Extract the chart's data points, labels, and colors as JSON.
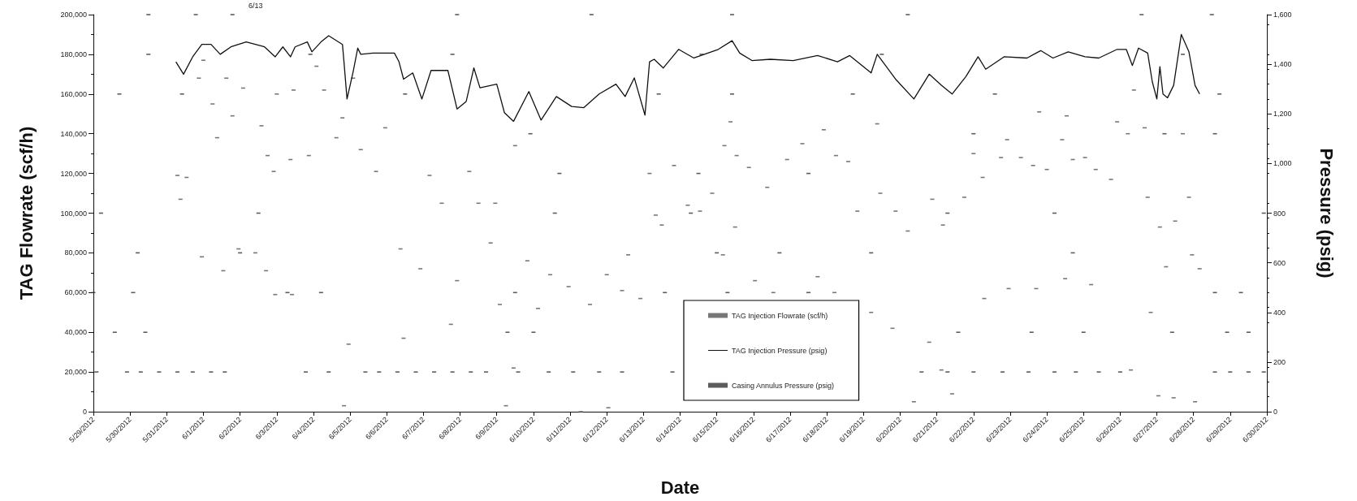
{
  "chart_data": {
    "type": "scatter",
    "xlabel": "Date",
    "ylabel": "TAG Flowrate (scf/h)",
    "y2label": "Pressure (psig)",
    "annotations": [
      "6/13"
    ],
    "legend": "bottom",
    "xlim": [
      "2012-05-29",
      "2012-06-30"
    ],
    "xticks": [
      {
        "value": "2012-05-29",
        "label": "5/29/2012"
      },
      {
        "value": "2012-05-30",
        "label": "5/30/2012"
      },
      {
        "value": "2012-05-31",
        "label": "5/31/2012"
      },
      {
        "value": "2012-06-01",
        "label": "6/1/2012"
      },
      {
        "value": "2012-06-02",
        "label": "6/2/2012"
      },
      {
        "value": "2012-06-03",
        "label": "6/3/2012"
      },
      {
        "value": "2012-06-04",
        "label": "6/4/2012"
      },
      {
        "value": "2012-06-05",
        "label": "6/5/2012"
      },
      {
        "value": "2012-06-06",
        "label": "6/6/2012"
      },
      {
        "value": "2012-06-07",
        "label": "6/7/2012"
      },
      {
        "value": "2012-06-08",
        "label": "6/8/2012"
      },
      {
        "value": "2012-06-09",
        "label": "6/9/2012"
      },
      {
        "value": "2012-06-10",
        "label": "6/10/2012"
      },
      {
        "value": "2012-06-11",
        "label": "6/11/2012"
      },
      {
        "value": "2012-06-12",
        "label": "6/12/2012"
      },
      {
        "value": "2012-06-13",
        "label": "6/13/2012"
      },
      {
        "value": "2012-06-14",
        "label": "6/14/2012"
      },
      {
        "value": "2012-06-15",
        "label": "6/15/2012"
      },
      {
        "value": "2012-06-16",
        "label": "6/16/2012"
      },
      {
        "value": "2012-06-17",
        "label": "6/17/2012"
      },
      {
        "value": "2012-06-18",
        "label": "6/18/2012"
      },
      {
        "value": "2012-06-19",
        "label": "6/19/2012"
      },
      {
        "value": "2012-06-20",
        "label": "6/20/2012"
      },
      {
        "value": "2012-06-21",
        "label": "6/21/2012"
      },
      {
        "value": "2012-06-22",
        "label": "6/22/2012"
      },
      {
        "value": "2012-06-23",
        "label": "6/23/2012"
      },
      {
        "value": "2012-06-24",
        "label": "6/24/2012"
      },
      {
        "value": "2012-06-25",
        "label": "6/25/2012"
      },
      {
        "value": "2012-06-26",
        "label": "6/26/2012"
      },
      {
        "value": "2012-06-27",
        "label": "6/27/2012"
      },
      {
        "value": "2012-06-28",
        "label": "6/28/2012"
      },
      {
        "value": "2012-06-29",
        "label": "6/29/2012"
      },
      {
        "value": "2012-06-30",
        "label": "6/30/2012"
      }
    ],
    "ylim": [
      0,
      200000
    ],
    "yticks": [
      0,
      {
        "value": 20000,
        "label": "20,000"
      },
      {
        "value": 40000,
        "label": "40,000"
      },
      {
        "value": 60000,
        "label": "60,000"
      },
      {
        "value": 80000,
        "label": "80,000"
      },
      {
        "value": 100000,
        "label": "100,000"
      },
      {
        "value": 120000,
        "label": "120,000"
      },
      {
        "value": 140000,
        "label": "140,000"
      },
      {
        "value": 160000,
        "label": "160,000"
      },
      {
        "value": 180000,
        "label": "180,000"
      },
      {
        "value": 200000,
        "label": "200,000"
      }
    ],
    "y2lim": [
      0,
      1600
    ],
    "y2ticks": [
      0,
      200,
      400,
      600,
      800,
      {
        "value": 1000,
        "label": "1,000"
      },
      {
        "value": 1200,
        "label": "1,200"
      },
      {
        "value": 1400,
        "label": "1,400"
      },
      {
        "value": 1600,
        "label": "1,600"
      }
    ],
    "series": [
      {
        "name": "TAG Injection Flowrate (scf/h)",
        "color": "#555555",
        "x": [
          "2012-05-31T07:00",
          "2012-05-31T09:00",
          "2012-05-31T13:00",
          "2012-05-31T21:00",
          "2012-05-31T23:00",
          "2012-06-01T00:00",
          "2012-06-01T06:00",
          "2012-06-01T09:00",
          "2012-06-01T13:00",
          "2012-06-01T15:00",
          "2012-06-01T19:00",
          "2012-06-01T23:00",
          "2012-06-02T02:00",
          "2012-06-02T10:00",
          "2012-06-02T14:00",
          "2012-06-02T17:00",
          "2012-06-02T18:00",
          "2012-06-02T22:00",
          "2012-06-02T23:00",
          "2012-06-03T00:00",
          "2012-06-03T09:00",
          "2012-06-03T10:00",
          "2012-06-03T11:00",
          "2012-06-03T21:00",
          "2012-06-04T02:00",
          "2012-06-04T07:00",
          "2012-06-04T15:00",
          "2012-06-04T19:00",
          "2012-06-04T20:00",
          "2012-06-04T23:00",
          "2012-06-05T02:00",
          "2012-06-05T07:00",
          "2012-06-05T17:00",
          "2012-06-05T23:00",
          "2012-06-06T09:00",
          "2012-06-06T11:00",
          "2012-06-06T22:00",
          "2012-06-07T04:00",
          "2012-06-07T12:00",
          "2012-06-07T18:00",
          "2012-06-07T22:00",
          "2012-06-08T06:00",
          "2012-06-08T12:00",
          "2012-06-08T20:00",
          "2012-06-08T23:00",
          "2012-06-09T02:00",
          "2012-06-09T06:00",
          "2012-06-09T11:00",
          "2012-06-09T12:00",
          "2012-06-09T20:00",
          "2012-06-10T03:00",
          "2012-06-10T11:00",
          "2012-06-10T23:00",
          "2012-06-11T07:00",
          "2012-06-11T13:00",
          "2012-06-12T00:00",
          "2012-06-12T01:00",
          "2012-06-12T10:00",
          "2012-06-12T14:00",
          "2012-06-12T22:00",
          "2012-06-13T04:00",
          "2012-06-13T08:00",
          "2012-06-13T12:00",
          "2012-06-13T20:00",
          "2012-06-14T05:00",
          "2012-06-14T13:00",
          "2012-06-14T21:00",
          "2012-06-15T04:00",
          "2012-06-15T05:00",
          "2012-06-15T09:00",
          "2012-06-15T12:00",
          "2012-06-15T13:00",
          "2012-06-15T21:00",
          "2012-06-16T01:00",
          "2012-06-16T09:00",
          "2012-06-16T13:00",
          "2012-06-16T22:00",
          "2012-06-17T08:00",
          "2012-06-17T18:00",
          "2012-06-17T22:00",
          "2012-06-18T05:00",
          "2012-06-18T06:00",
          "2012-06-18T14:00",
          "2012-06-18T20:00",
          "2012-06-19T05:00",
          "2012-06-19T09:00",
          "2012-06-19T11:00",
          "2012-06-19T19:00",
          "2012-06-19T21:00",
          "2012-06-20T05:00",
          "2012-06-20T09:00",
          "2012-06-20T19:00",
          "2012-06-20T21:00",
          "2012-06-21T03:00",
          "2012-06-21T04:00",
          "2012-06-21T10:00",
          "2012-06-21T18:00",
          "2012-06-22T00:00",
          "2012-06-22T06:00",
          "2012-06-22T07:00",
          "2012-06-22T18:00",
          "2012-06-22T22:00",
          "2012-06-22T23:00",
          "2012-06-23T07:00",
          "2012-06-23T15:00",
          "2012-06-23T17:00",
          "2012-06-23T19:00",
          "2012-06-24T00:00",
          "2012-06-24T10:00",
          "2012-06-24T12:00",
          "2012-06-24T13:00",
          "2012-06-24T17:00",
          "2012-06-25T01:00",
          "2012-06-25T05:00",
          "2012-06-25T08:00",
          "2012-06-25T18:00",
          "2012-06-25T22:00",
          "2012-06-26T05:00",
          "2012-06-26T07:00",
          "2012-06-26T09:00",
          "2012-06-26T16:00",
          "2012-06-26T18:00",
          "2012-06-26T20:00",
          "2012-06-27T01:00",
          "2012-06-27T02:00",
          "2012-06-27T06:00",
          "2012-06-27T11:00",
          "2012-06-27T12:00",
          "2012-06-27T17:00",
          "2012-06-27T21:00",
          "2012-06-27T23:00",
          "2012-06-28T01:00",
          "2012-06-28T04:00"
        ],
        "values": [
          119000,
          107000,
          118000,
          168000,
          78000,
          177000,
          155000,
          138000,
          71000,
          168000,
          149000,
          82000,
          163000,
          80000,
          144000,
          71000,
          129000,
          121000,
          59000,
          160000,
          127000,
          59000,
          162000,
          129000,
          174000,
          162000,
          138000,
          148000,
          3000,
          34000,
          168000,
          132000,
          121000,
          143000,
          82000,
          37000,
          72000,
          119000,
          105000,
          44000,
          66000,
          121000,
          105000,
          85000,
          105000,
          54000,
          3000,
          22000,
          134000,
          76000,
          52000,
          69000,
          63000,
          0,
          54000,
          69000,
          2000,
          61000,
          79000,
          57000,
          120000,
          99000,
          94000,
          124000,
          104000,
          101000,
          110000,
          79000,
          134000,
          146000,
          93000,
          129000,
          123000,
          66000,
          113000,
          60000,
          127000,
          135000,
          68000,
          142000,
          60000,
          129000,
          126000,
          101000,
          50000,
          145000,
          110000,
          42000,
          101000,
          91000,
          5000,
          35000,
          107000,
          21000,
          94000,
          9000,
          108000,
          130000,
          118000,
          57000,
          128000,
          137000,
          62000,
          128000,
          124000,
          62000,
          151000,
          122000,
          137000,
          67000,
          149000,
          127000,
          128000,
          64000,
          122000,
          117000,
          146000,
          140000,
          21000,
          162000,
          143000,
          108000,
          50000,
          8000,
          93000,
          73000,
          7000,
          96000,
          140000,
          108000,
          79000,
          5000,
          72000
        ]
      },
      {
        "name": "TAG Injection Pressure (psig)",
        "type": "line",
        "axis": "y2",
        "color": "#111111",
        "x": [
          "2012-05-31T06:00",
          "2012-05-31T11:00",
          "2012-05-31T17:00",
          "2012-05-31T23:00",
          "2012-06-01T05:00",
          "2012-06-01T11:00",
          "2012-06-01T18:00",
          "2012-06-02T04:00",
          "2012-06-02T16:00",
          "2012-06-02T23:00",
          "2012-06-03T04:00",
          "2012-06-03T09:00",
          "2012-06-03T12:00",
          "2012-06-03T20:00",
          "2012-06-03T23:00",
          "2012-06-04T05:00",
          "2012-06-04T10:00",
          "2012-06-04T19:00",
          "2012-06-04T20:00",
          "2012-06-04T22:00",
          "2012-06-05T02:00",
          "2012-06-05T05:00",
          "2012-06-05T07:00",
          "2012-06-05T15:00",
          "2012-06-06T05:00",
          "2012-06-06T08:00",
          "2012-06-06T11:00",
          "2012-06-06T17:00",
          "2012-06-06T23:00",
          "2012-06-07T05:00",
          "2012-06-07T16:00",
          "2012-06-07T22:00",
          "2012-06-08T04:00",
          "2012-06-08T09:00",
          "2012-06-08T13:00",
          "2012-06-09T00:00",
          "2012-06-09T05:00",
          "2012-06-09T11:00",
          "2012-06-09T21:00",
          "2012-06-10T05:00",
          "2012-06-10T15:00",
          "2012-06-11T01:00",
          "2012-06-11T09:00",
          "2012-06-11T19:00",
          "2012-06-12T06:00",
          "2012-06-12T12:00",
          "2012-06-12T18:00",
          "2012-06-13T01:00",
          "2012-06-13T04:00",
          "2012-06-13T07:00",
          "2012-06-13T13:00",
          "2012-06-13T23:00",
          "2012-06-14T09:00",
          "2012-06-15T01:00",
          "2012-06-15T10:00",
          "2012-06-15T15:00",
          "2012-06-15T23:00",
          "2012-06-16T11:00",
          "2012-06-17T02:00",
          "2012-06-17T18:00",
          "2012-06-18T07:00",
          "2012-06-18T15:00",
          "2012-06-19T05:00",
          "2012-06-19T09:00",
          "2012-06-19T21:00",
          "2012-06-20T09:00",
          "2012-06-20T19:00",
          "2012-06-21T03:00",
          "2012-06-21T10:00",
          "2012-06-21T19:00",
          "2012-06-22T03:00",
          "2012-06-22T08:00",
          "2012-06-22T20:00",
          "2012-06-23T11:00",
          "2012-06-23T20:00",
          "2012-06-24T04:00",
          "2012-06-24T14:00",
          "2012-06-25T01:00",
          "2012-06-25T10:00",
          "2012-06-25T22:00",
          "2012-06-26T04:00",
          "2012-06-26T08:00",
          "2012-06-26T12:00",
          "2012-06-26T18:00",
          "2012-06-26T21:00",
          "2012-06-27T00:00",
          "2012-06-27T02:00",
          "2012-06-27T04:00",
          "2012-06-27T07:00",
          "2012-06-27T11:00",
          "2012-06-27T16:00",
          "2012-06-27T21:00",
          "2012-06-28T01:00",
          "2012-06-28T04:00"
        ],
        "values": [
          1410,
          1360,
          1430,
          1480,
          1480,
          1440,
          1470,
          1490,
          1470,
          1430,
          1470,
          1430,
          1470,
          1490,
          1450,
          1490,
          1515,
          1480,
          1410,
          1260,
          1370,
          1465,
          1440,
          1445,
          1445,
          1410,
          1340,
          1365,
          1260,
          1375,
          1375,
          1220,
          1250,
          1385,
          1305,
          1320,
          1205,
          1170,
          1290,
          1175,
          1270,
          1230,
          1225,
          1280,
          1320,
          1270,
          1345,
          1195,
          1410,
          1420,
          1385,
          1460,
          1425,
          1460,
          1495,
          1445,
          1415,
          1420,
          1415,
          1435,
          1410,
          1435,
          1365,
          1440,
          1340,
          1260,
          1360,
          1315,
          1280,
          1350,
          1430,
          1380,
          1430,
          1425,
          1455,
          1425,
          1450,
          1430,
          1425,
          1460,
          1460,
          1395,
          1465,
          1445,
          1330,
          1260,
          1390,
          1280,
          1265,
          1315,
          1520,
          1450,
          1315,
          1280
        ]
      },
      {
        "name": "Casing Annulus Pressure (psig)",
        "axis": "y2",
        "color": "#333333",
        "x": [
          "2012-05-29T02:00",
          "2012-05-29T22:00",
          "2012-05-30T07:00",
          "2012-05-30T19:00",
          "2012-05-31T07:00",
          "2012-05-31T17:00",
          "2012-06-01T05:00",
          "2012-06-01T14:00",
          "2012-06-03T19:00",
          "2012-06-04T10:00",
          "2012-06-05T10:00",
          "2012-06-05T19:00",
          "2012-06-06T07:00",
          "2012-06-06T19:00",
          "2012-06-07T07:00",
          "2012-06-07T19:00",
          "2012-06-08T07:00",
          "2012-06-08T17:00",
          "2012-06-09T14:00",
          "2012-06-10T10:00",
          "2012-06-11T02:00",
          "2012-06-11T19:00",
          "2012-06-12T10:00",
          "2012-06-13T19:00",
          "2012-06-20T14:00",
          "2012-06-21T07:00",
          "2012-06-22T00:00",
          "2012-06-22T19:00",
          "2012-06-23T12:00",
          "2012-06-24T05:00",
          "2012-06-24T19:00",
          "2012-06-25T10:00",
          "2012-06-26T00:00",
          "2012-06-28T14:00",
          "2012-06-29T00:00",
          "2012-06-29T12:00",
          "2012-06-29T22:00",
          "2012-05-29T14:00",
          "2012-05-30T10:00",
          "2012-06-09T07:00",
          "2012-06-10T00:00",
          "2012-06-21T14:00",
          "2012-06-23T14:00",
          "2012-06-25T00:00",
          "2012-06-27T10:00",
          "2012-06-28T22:00",
          "2012-06-29T12:00",
          "2012-05-29T00:00",
          "2012-05-30T02:00",
          "2012-06-03T07:00",
          "2012-06-04T05:00",
          "2012-06-09T12:00",
          "2012-06-13T14:00",
          "2012-06-15T07:00",
          "2012-06-17T12:00",
          "2012-06-28T14:00",
          "2012-06-29T07:00",
          "2012-05-30T05:00",
          "2012-06-02T00:00",
          "2012-06-15T00:00",
          "2012-06-16T17:00",
          "2012-06-19T05:00",
          "2012-06-24T17:00",
          "2012-05-29T05:00",
          "2012-06-02T12:00",
          "2012-06-10T14:00",
          "2012-06-14T07:00",
          "2012-06-21T07:00",
          "2012-06-24T05:00",
          "2012-06-29T22:00",
          "2012-06-10T17:00",
          "2012-06-14T12:00",
          "2012-06-17T12:00",
          "2012-06-09T22:00",
          "2012-06-22T00:00",
          "2012-06-27T05:00",
          "2012-06-28T14:00",
          "2012-05-29T17:00",
          "2012-05-31T10:00",
          "2012-06-06T12:00",
          "2012-06-13T10:00",
          "2012-06-15T10:00",
          "2012-06-18T17:00",
          "2012-06-22T14:00",
          "2012-06-28T17:00",
          "2012-05-30T12:00",
          "2012-06-03T22:00",
          "2012-06-07T19:00",
          "2012-06-14T14:00",
          "2012-06-19T12:00",
          "2012-06-27T17:00",
          "2012-05-30T12:00",
          "2012-05-31T19:00",
          "2012-06-01T19:00",
          "2012-06-07T22:00",
          "2012-06-11T14:00",
          "2012-06-15T10:00",
          "2012-06-20T05:00",
          "2012-06-26T14:00",
          "2012-06-28T12:00"
        ],
        "values": [
          160,
          160,
          160,
          160,
          160,
          160,
          160,
          160,
          160,
          160,
          160,
          160,
          160,
          160,
          160,
          160,
          160,
          160,
          160,
          160,
          160,
          160,
          160,
          160,
          160,
          160,
          160,
          160,
          160,
          160,
          160,
          160,
          160,
          160,
          160,
          160,
          160,
          320,
          320,
          320,
          320,
          320,
          320,
          320,
          320,
          320,
          320,
          480,
          480,
          480,
          480,
          480,
          480,
          480,
          480,
          480,
          480,
          640,
          640,
          640,
          640,
          640,
          640,
          800,
          800,
          800,
          800,
          800,
          800,
          800,
          960,
          960,
          960,
          1120,
          1120,
          1120,
          1120,
          1280,
          1280,
          1280,
          1280,
          1280,
          1280,
          1280,
          1280,
          1440,
          1440,
          1440,
          1440,
          1440,
          1440,
          1600,
          1600,
          1600,
          1600,
          1600,
          1600,
          1600,
          1600,
          1600
        ]
      }
    ]
  }
}
